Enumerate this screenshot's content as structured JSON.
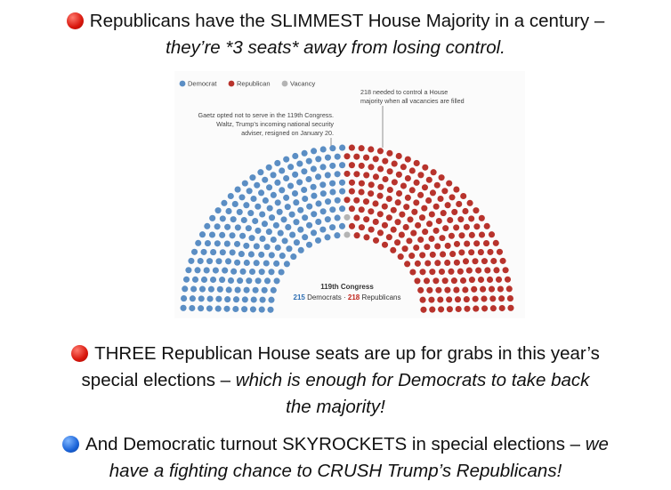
{
  "headline": {
    "line1": "Republicans have the SLIMMEST House Majority in a century –",
    "line2": "they’re *3 seats* away from losing control."
  },
  "chart_data": {
    "type": "parliament",
    "legend": [
      {
        "name": "Democrat",
        "color": "#5b8ec4"
      },
      {
        "name": "Republican",
        "color": "#b8332c"
      },
      {
        "name": "Vacancy",
        "color": "#b4b4b4"
      }
    ],
    "seats": {
      "Democrat": 215,
      "Republican": 218,
      "Vacancy": 2
    },
    "annotation_majority_1": "218 needed to control a House",
    "annotation_majority_2": "majority when all vacancies are filled",
    "annotation_vacancy_1": "Gaetz opted not to serve in the 119th Congress.",
    "annotation_vacancy_2": "Waltz, Trump’s incoming national security",
    "annotation_vacancy_3": "adviser, resigned on January 20.",
    "caption_title": "119th Congress",
    "caption_dem_count": "215",
    "caption_dem_label": " Democrats",
    "caption_sep": " · ",
    "caption_rep_count": "218",
    "caption_rep_label": " Republicans"
  },
  "body": {
    "p1_line1": "THREE Republican House seats are up for grabs in this year’s",
    "p1_line2_normal": "special elections – ",
    "p1_line2_italic": "which is enough for Democrats to take back",
    "p1_line3_italic": "the majority!",
    "p2_line1_normal": "And Democratic turnout SKYROCKETS in special elections – ",
    "p2_line1_italic": "we",
    "p2_line2_italic": "have a fighting chance to CRUSH Trump’s Republicans!"
  },
  "colors": {
    "democrat": "#5b8ec4",
    "republican": "#b8332c",
    "vacancy": "#b4b4b4",
    "dem_text": "#2f6fb3",
    "rep_text": "#c0261d"
  },
  "icons": [
    "red-circle-emoji",
    "red-circle-emoji",
    "blue-circle-emoji"
  ]
}
